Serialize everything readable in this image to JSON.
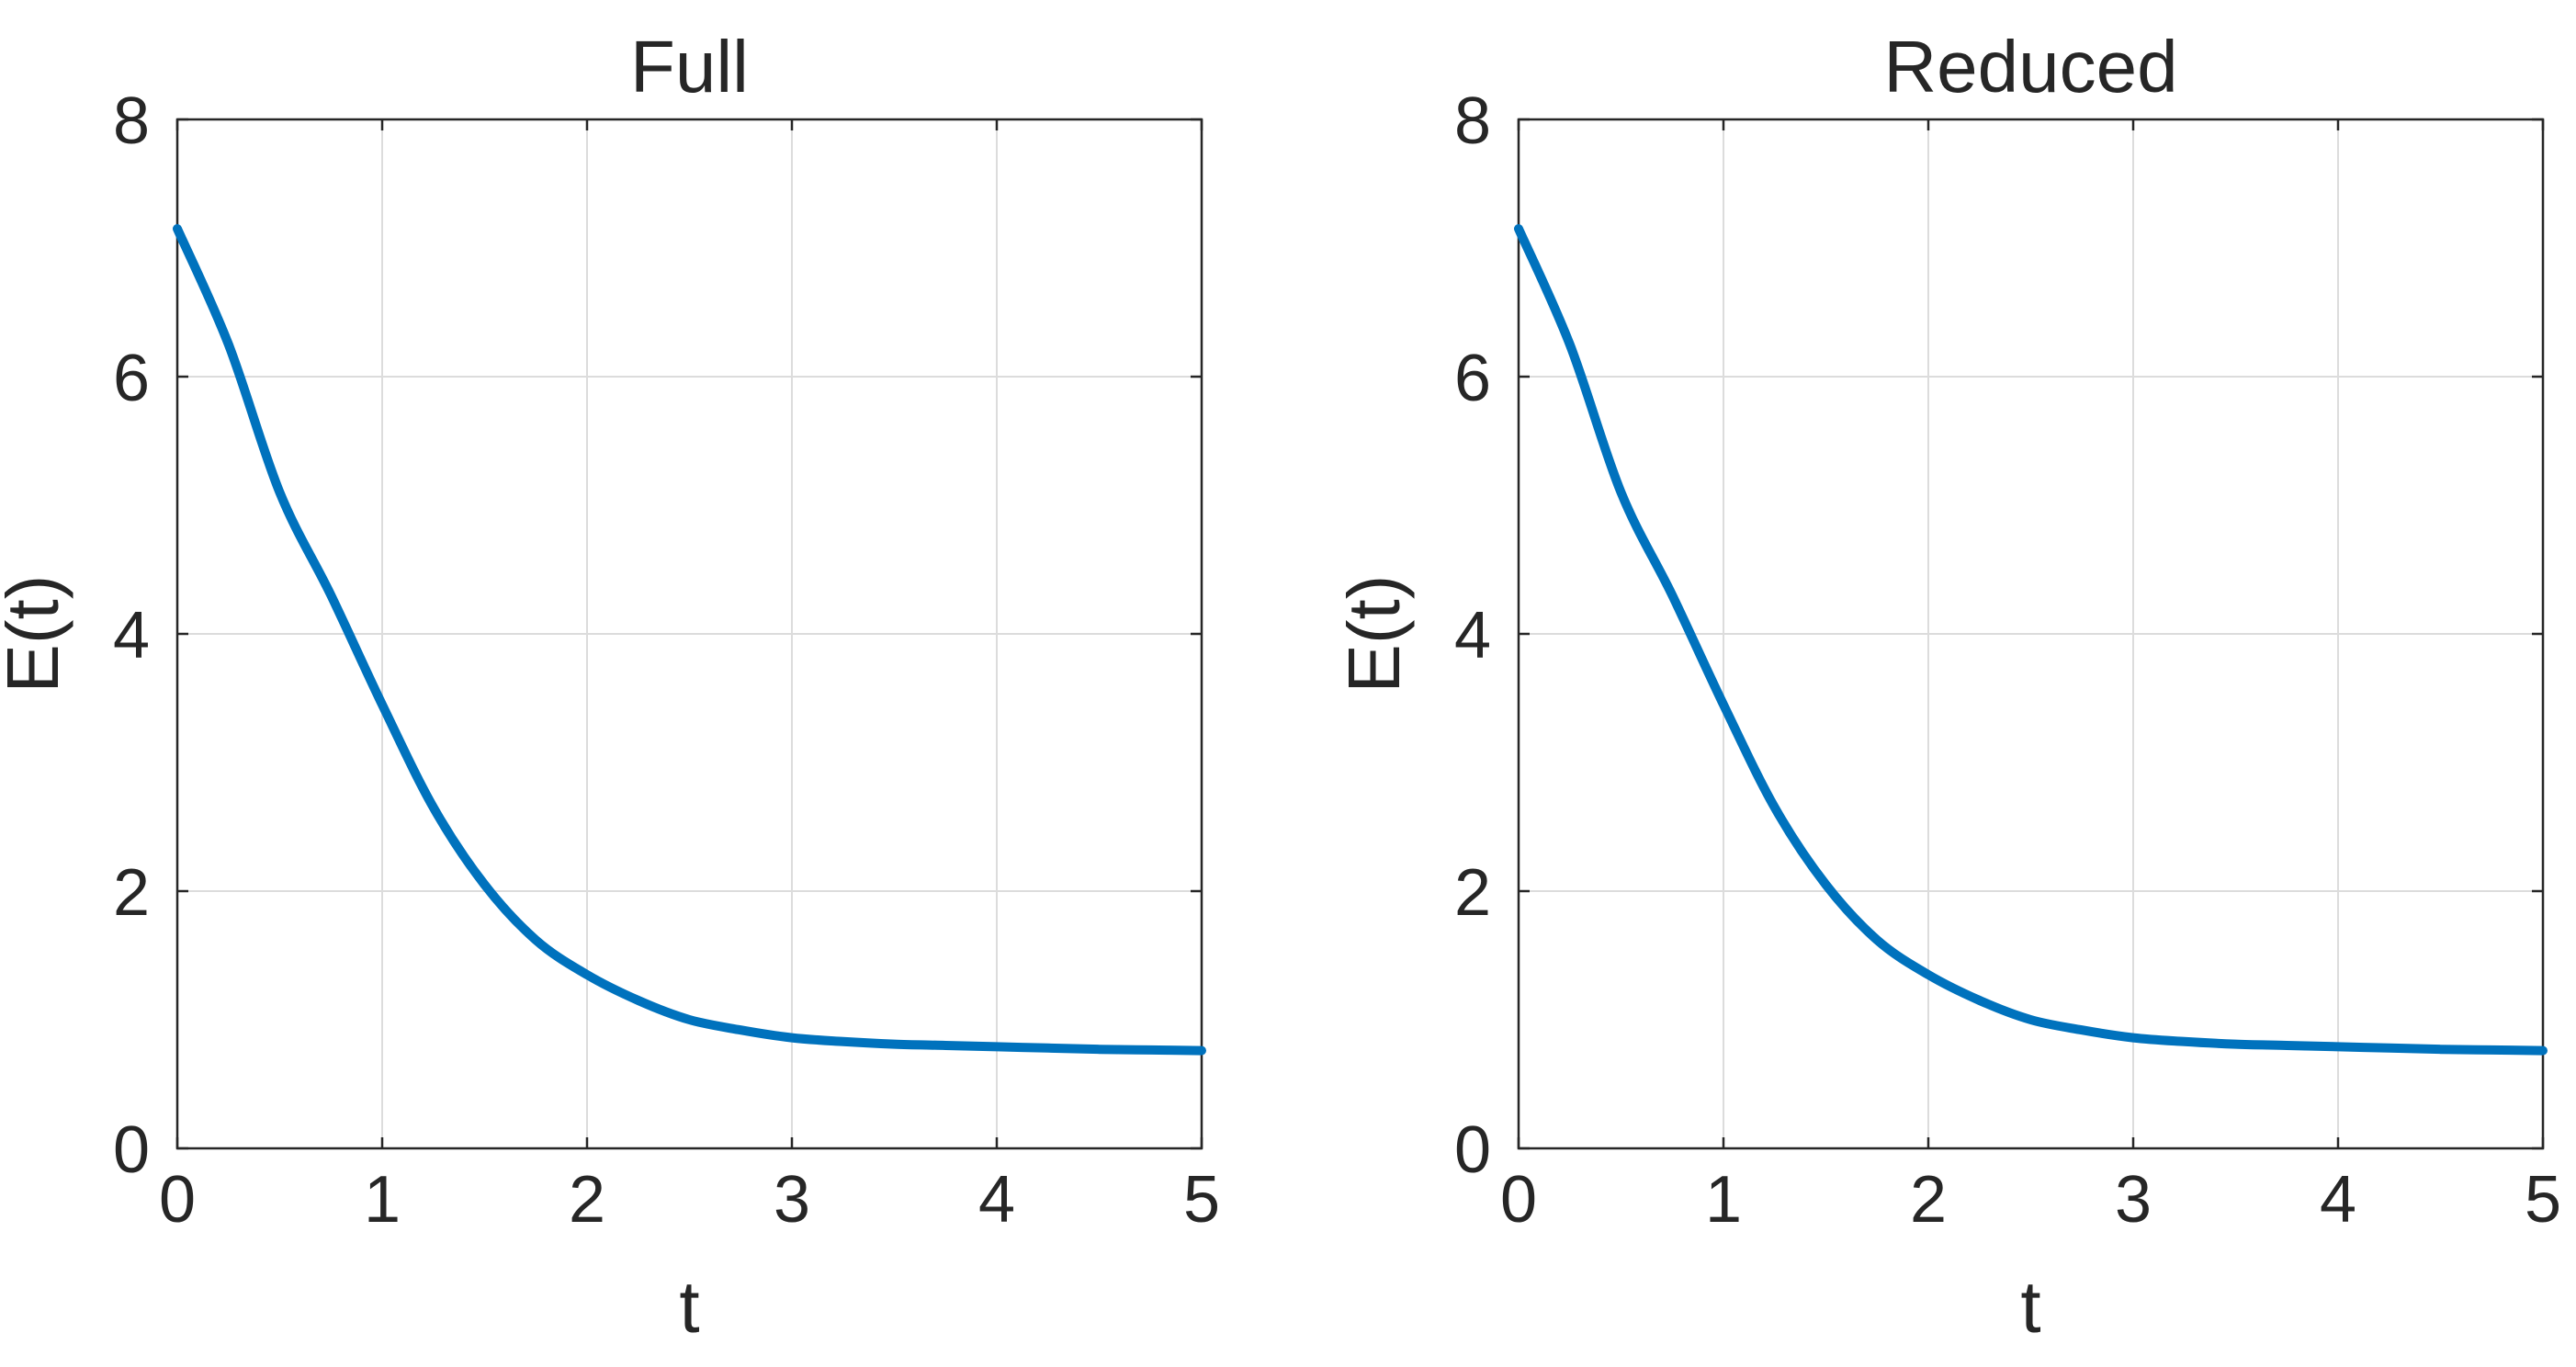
{
  "figure": {
    "background_color": "#ffffff",
    "line_color": "#0072bd",
    "grid_color": "#dcdcdc",
    "axis_color": "#262626"
  },
  "chart_data": [
    {
      "type": "line",
      "title": "Full",
      "xlabel": "t",
      "ylabel": "E(t)",
      "xlim": [
        0,
        5
      ],
      "ylim": [
        0,
        8
      ],
      "xticks": [
        0,
        1,
        2,
        3,
        4,
        5
      ],
      "yticks": [
        0,
        2,
        4,
        6,
        8
      ],
      "grid": true,
      "series": [
        {
          "x": [
            0,
            0.25,
            0.5,
            0.75,
            1.0,
            1.25,
            1.5,
            1.75,
            2.0,
            2.25,
            2.5,
            2.75,
            3.0,
            3.25,
            3.5,
            3.75,
            4.0,
            4.25,
            4.5,
            4.75,
            5.0
          ],
          "y": [
            7.15,
            6.25,
            5.1,
            4.3,
            3.45,
            2.65,
            2.05,
            1.62,
            1.35,
            1.15,
            1.0,
            0.92,
            0.86,
            0.83,
            0.81,
            0.8,
            0.79,
            0.78,
            0.77,
            0.765,
            0.76
          ]
        }
      ]
    },
    {
      "type": "line",
      "title": "Reduced",
      "xlabel": "t",
      "ylabel": "E(t)",
      "xlim": [
        0,
        5
      ],
      "ylim": [
        0,
        8
      ],
      "xticks": [
        0,
        1,
        2,
        3,
        4,
        5
      ],
      "yticks": [
        0,
        2,
        4,
        6,
        8
      ],
      "grid": true,
      "series": [
        {
          "x": [
            0,
            0.25,
            0.5,
            0.75,
            1.0,
            1.25,
            1.5,
            1.75,
            2.0,
            2.25,
            2.5,
            2.75,
            3.0,
            3.25,
            3.5,
            3.75,
            4.0,
            4.25,
            4.5,
            4.75,
            5.0
          ],
          "y": [
            7.15,
            6.25,
            5.1,
            4.3,
            3.45,
            2.65,
            2.05,
            1.62,
            1.35,
            1.15,
            1.0,
            0.92,
            0.86,
            0.83,
            0.81,
            0.8,
            0.79,
            0.78,
            0.77,
            0.765,
            0.76
          ]
        }
      ]
    }
  ]
}
